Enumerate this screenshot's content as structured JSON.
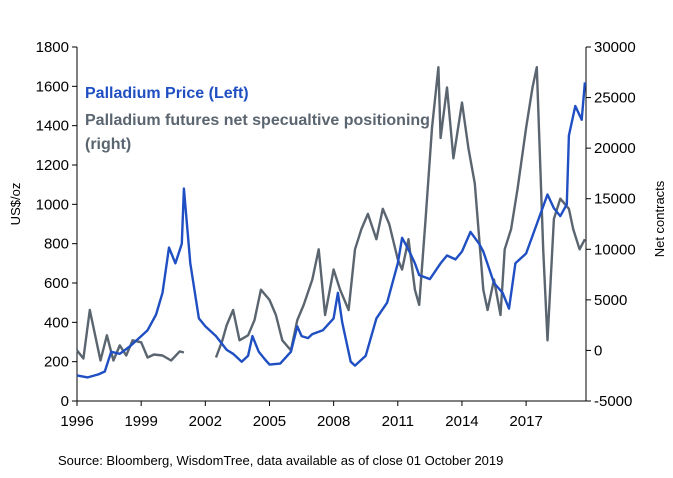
{
  "chart_data": {
    "type": "line",
    "left_axis": {
      "label": "US$/oz",
      "range": [
        0,
        1800
      ],
      "ticks": [
        "0",
        "200",
        "400",
        "600",
        "800",
        "1000",
        "1200",
        "1400",
        "1600",
        "1800"
      ]
    },
    "right_axis": {
      "label": "Net contracts",
      "range": [
        -5000,
        30000
      ],
      "ticks": [
        "-5000",
        "0",
        "5000",
        "10000",
        "15000",
        "20000",
        "25000",
        "30000"
      ]
    },
    "x_axis": {
      "range": [
        1996,
        2019.8
      ],
      "ticks": [
        "1996",
        "1999",
        "2002",
        "2005",
        "2008",
        "2011",
        "2014",
        "2017"
      ]
    },
    "legend_placement": "top-left",
    "series": [
      {
        "name": "Palladium Price (Left)",
        "axis": "left",
        "color": "#1F4FC2",
        "x": [
          1996.0,
          1996.5,
          1997.0,
          1997.3,
          1997.6,
          1998.0,
          1998.5,
          1999.0,
          1999.3,
          1999.7,
          2000.0,
          2000.3,
          2000.6,
          2000.9,
          2001.0,
          2001.3,
          2001.7,
          2002.0,
          2002.5,
          2003.0,
          2003.3,
          2003.7,
          2004.0,
          2004.2,
          2004.5,
          2004.8,
          2005.0,
          2005.5,
          2006.0,
          2006.3,
          2006.5,
          2006.8,
          2007.0,
          2007.5,
          2008.0,
          2008.2,
          2008.4,
          2008.8,
          2009.0,
          2009.5,
          2010.0,
          2010.5,
          2011.0,
          2011.2,
          2011.5,
          2011.8,
          2012.0,
          2012.5,
          2013.0,
          2013.3,
          2013.7,
          2014.0,
          2014.4,
          2014.8,
          2015.0,
          2015.5,
          2015.9,
          2016.2,
          2016.5,
          2017.0,
          2017.5,
          2018.0,
          2018.3,
          2018.6,
          2018.9,
          2019.0,
          2019.3,
          2019.6,
          2019.75
        ],
        "y": [
          130,
          120,
          135,
          150,
          250,
          240,
          280,
          330,
          360,
          440,
          550,
          780,
          700,
          800,
          1080,
          700,
          420,
          380,
          330,
          260,
          240,
          200,
          230,
          330,
          250,
          210,
          185,
          190,
          250,
          380,
          330,
          320,
          340,
          360,
          420,
          550,
          400,
          200,
          180,
          230,
          420,
          500,
          700,
          830,
          770,
          700,
          640,
          620,
          700,
          740,
          720,
          760,
          860,
          800,
          760,
          600,
          550,
          470,
          700,
          750,
          900,
          1050,
          980,
          940,
          1000,
          1350,
          1500,
          1430,
          1620
        ]
      },
      {
        "name": "Palladium futures net specualtive positioning (right)",
        "axis": "right",
        "color": "#5A6570",
        "x": [
          1996.0,
          1996.3,
          1996.6,
          1996.9,
          1997.1,
          1997.4,
          1997.7,
          1998.0,
          1998.3,
          1998.6,
          1999.0,
          1999.3,
          1999.6,
          2000.0,
          2000.4,
          2000.8,
          2001.0,
          2002.5,
          2002.8,
          2003.0,
          2003.3,
          2003.6,
          2004.0,
          2004.3,
          2004.6,
          2005.0,
          2005.3,
          2005.6,
          2006.0,
          2006.3,
          2006.6,
          2007.0,
          2007.3,
          2007.6,
          2008.0,
          2008.3,
          2008.7,
          2009.0,
          2009.3,
          2009.6,
          2010.0,
          2010.3,
          2010.6,
          2011.0,
          2011.2,
          2011.5,
          2011.8,
          2012.0,
          2012.3,
          2012.6,
          2012.9,
          2013.0,
          2013.3,
          2013.6,
          2014.0,
          2014.3,
          2014.6,
          2015.0,
          2015.2,
          2015.5,
          2015.8,
          2016.0,
          2016.3,
          2016.6,
          2017.0,
          2017.3,
          2017.5,
          2017.8,
          2018.0,
          2018.3,
          2018.6,
          2019.0,
          2019.2,
          2019.5,
          2019.75
        ],
        "y": [
          0,
          -800,
          4000,
          1000,
          -1000,
          1500,
          -1000,
          500,
          -500,
          1000,
          800,
          -700,
          -400,
          -500,
          -1000,
          -100,
          -200,
          -700,
          1000,
          2500,
          4000,
          1000,
          1500,
          3000,
          6000,
          5000,
          3500,
          1000,
          0,
          3000,
          4500,
          7000,
          10000,
          3500,
          8000,
          6000,
          4000,
          10000,
          12000,
          13500,
          11000,
          14000,
          12500,
          9000,
          8000,
          11000,
          6000,
          4500,
          13000,
          22000,
          28000,
          21000,
          26000,
          19000,
          24500,
          20000,
          16500,
          6000,
          4000,
          7000,
          3500,
          10000,
          12000,
          16000,
          22000,
          26000,
          28000,
          10000,
          1000,
          13000,
          15000,
          14000,
          12000,
          10000,
          11000
        ]
      }
    ],
    "source": "Source: Bloomberg, WisdomTree, data available as of close 01 October 2019"
  }
}
